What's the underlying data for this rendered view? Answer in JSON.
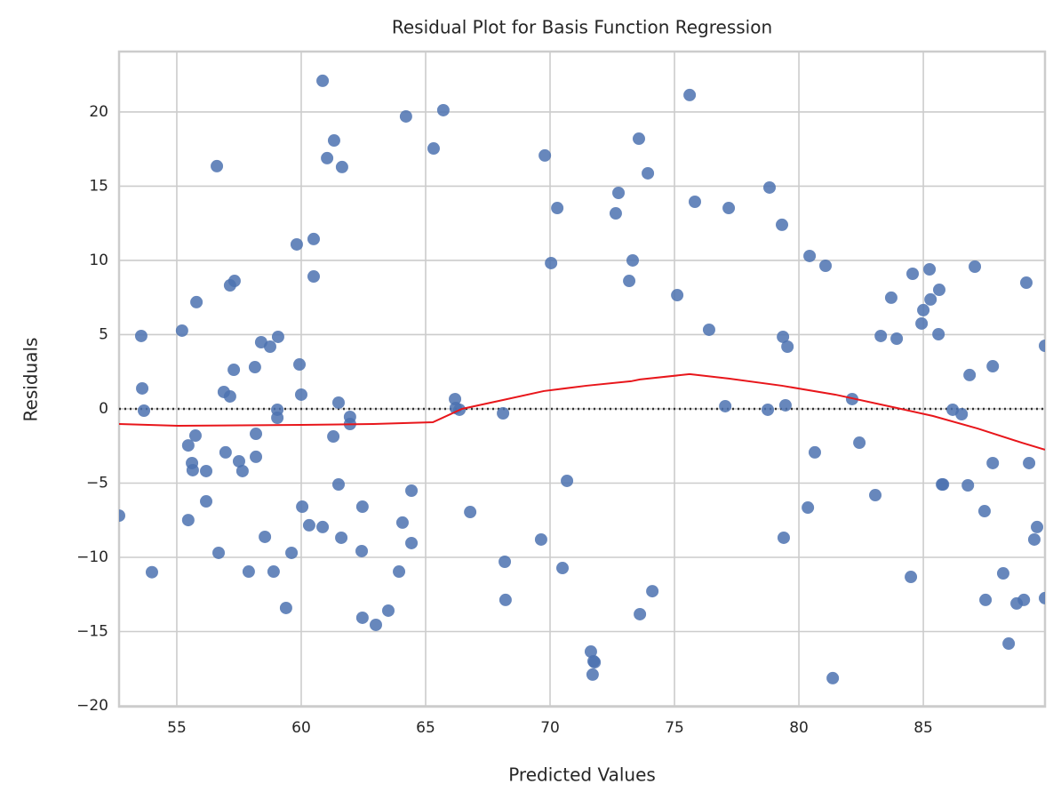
{
  "chart_data": {
    "type": "scatter",
    "title": "Residual Plot for Basis Function Regression",
    "x_label": "Predicted Values",
    "y_label": "Residuals",
    "xlim": [
      52.68,
      89.89
    ],
    "ylim": [
      -20.06,
      24.07
    ],
    "xticks": [
      55,
      60,
      65,
      70,
      75,
      80,
      85
    ],
    "yticks": [
      {
        "value": -20,
        "label": "−20"
      },
      {
        "value": -15,
        "label": "−15"
      },
      {
        "value": -10,
        "label": "−10"
      },
      {
        "value": -5,
        "label": "−5"
      },
      0,
      5,
      10,
      15,
      20
    ],
    "grid": true,
    "reference_line": 0,
    "series": [
      {
        "type": "scatter",
        "color": "#4c72b0",
        "x": [
          52.68,
          53.57,
          53.61,
          53.68,
          54.0,
          55.21,
          55.46,
          55.46,
          55.61,
          55.64,
          55.75,
          55.79,
          56.18,
          56.18,
          56.61,
          56.68,
          56.89,
          56.96,
          57.14,
          57.14,
          57.32,
          57.29,
          57.5,
          57.64,
          57.89,
          58.14,
          58.18,
          58.18,
          58.39,
          58.54,
          58.75,
          58.89,
          59.04,
          59.04,
          59.07,
          59.39,
          59.61,
          59.82,
          59.93,
          60.0,
          60.04,
          60.32,
          60.5,
          60.5,
          60.86,
          60.86,
          61.04,
          61.32,
          61.29,
          61.5,
          61.5,
          61.61,
          61.64,
          61.96,
          61.96,
          62.43,
          62.46,
          62.46,
          63.0,
          63.5,
          63.93,
          64.07,
          64.21,
          64.43,
          64.43,
          65.32,
          65.71,
          66.18,
          66.21,
          66.36,
          66.79,
          68.11,
          68.18,
          68.21,
          69.64,
          69.79,
          70.04,
          70.29,
          70.5,
          70.68,
          71.64,
          71.75,
          71.71,
          71.79,
          72.64,
          72.75,
          73.18,
          73.32,
          73.57,
          73.61,
          73.93,
          74.11,
          75.11,
          75.61,
          75.82,
          76.39,
          77.04,
          77.18,
          78.75,
          78.82,
          79.32,
          79.36,
          79.39,
          79.46,
          79.54,
          80.36,
          80.43,
          80.64,
          81.07,
          81.36,
          82.14,
          82.43,
          83.07,
          83.29,
          83.71,
          83.93,
          84.5,
          84.57,
          84.93,
          85.0,
          85.25,
          85.29,
          85.61,
          85.64,
          85.75,
          85.79,
          86.18,
          86.54,
          86.79,
          86.86,
          87.07,
          87.46,
          87.5,
          87.79,
          87.79,
          88.21,
          88.43,
          88.75,
          89.04,
          89.14,
          89.25,
          89.46,
          89.57,
          89.89,
          89.89
        ],
        "values": [
          -7.19,
          4.91,
          1.38,
          -0.12,
          -11.0,
          5.27,
          -2.46,
          -7.49,
          -3.65,
          -4.13,
          -1.8,
          7.19,
          -4.19,
          -6.23,
          16.35,
          -9.7,
          1.14,
          -2.93,
          0.84,
          8.32,
          8.62,
          2.63,
          -3.53,
          -4.19,
          -10.96,
          2.81,
          -1.68,
          -3.23,
          4.49,
          -8.62,
          4.19,
          -10.96,
          -0.06,
          -0.6,
          4.85,
          -13.41,
          -9.7,
          11.08,
          2.99,
          0.96,
          -6.59,
          -7.84,
          8.92,
          11.44,
          22.1,
          -7.96,
          16.89,
          18.08,
          -1.86,
          0.42,
          -5.09,
          -8.68,
          16.29,
          -0.54,
          -1.02,
          -9.58,
          -6.59,
          -14.07,
          -14.55,
          -13.59,
          -10.96,
          -7.66,
          19.7,
          -5.51,
          -9.04,
          17.54,
          20.12,
          0.66,
          0.06,
          -0.06,
          -6.95,
          -0.3,
          -10.3,
          -12.87,
          -8.8,
          17.07,
          9.82,
          13.53,
          -10.72,
          -4.85,
          -16.35,
          -17.0,
          -17.9,
          -17.07,
          13.17,
          14.55,
          8.62,
          10.0,
          18.2,
          -13.83,
          15.87,
          -12.28,
          7.66,
          21.14,
          13.95,
          5.33,
          0.18,
          13.53,
          -0.06,
          14.91,
          12.4,
          4.85,
          -8.68,
          0.24,
          4.19,
          -6.65,
          10.3,
          -2.93,
          9.64,
          -18.14,
          0.66,
          -2.28,
          -5.81,
          4.91,
          7.49,
          4.73,
          -11.32,
          9.1,
          5.75,
          6.65,
          9.4,
          7.37,
          5.03,
          8.02,
          -5.09,
          -5.09,
          -0.06,
          -0.36,
          -5.15,
          2.28,
          9.58,
          -6.89,
          -12.87,
          -3.65,
          2.87,
          -11.08,
          -15.81,
          -13.11,
          -12.87,
          8.5,
          -3.65,
          -8.8,
          -7.96,
          4.25,
          -12.75
        ]
      },
      {
        "type": "line",
        "color": "#e8161b",
        "x": [
          52.68,
          55.04,
          60.0,
          62.89,
          65.29,
          66.46,
          68.11,
          69.75,
          71.46,
          73.25,
          73.61,
          75.61,
          77.18,
          79.32,
          81.46,
          83.61,
          85.39,
          87.18,
          88.96,
          89.89
        ],
        "values": [
          -1.02,
          -1.14,
          -1.08,
          -1.02,
          -0.9,
          0,
          0.6,
          1.2,
          1.56,
          1.86,
          1.98,
          2.34,
          2.04,
          1.56,
          0.96,
          0.18,
          -0.48,
          -1.32,
          -2.28,
          -2.75
        ]
      }
    ]
  }
}
